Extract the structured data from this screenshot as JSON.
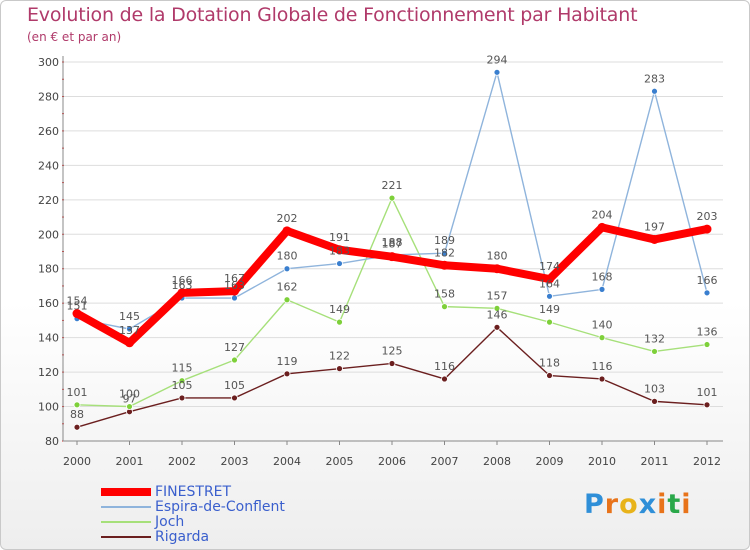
{
  "header": {
    "title": "Evolution de la Dotation Globale de Fonctionnement par Habitant",
    "subtitle": "(en € et par an)"
  },
  "logo": {
    "letters": [
      "P",
      "r",
      "o",
      "x",
      "i",
      "t",
      "i"
    ],
    "colors": [
      "#2f8fd8",
      "#e8731a",
      "#e8b31a",
      "#2f8fd8",
      "#e8731a",
      "#2aa84a",
      "#e8731a"
    ]
  },
  "chart_data": {
    "type": "line",
    "title": "Evolution de la Dotation Globale de Fonctionnement par Habitant",
    "subtitle": "(en € et par an)",
    "xlabel": "",
    "ylabel": "",
    "x": [
      "2000",
      "2001",
      "2002",
      "2003",
      "2004",
      "2005",
      "2006",
      "2007",
      "2008",
      "2009",
      "2010",
      "2011",
      "2012"
    ],
    "ylim": [
      80,
      300
    ],
    "yticks": [
      80,
      100,
      120,
      140,
      160,
      180,
      200,
      220,
      240,
      260,
      280,
      300
    ],
    "grid": "horizontal",
    "legend": "bottom-left",
    "series": [
      {
        "name": "Rigarda",
        "color": "#6b1f1f",
        "point_color": "#6b1f1f",
        "values": [
          88,
          97,
          105,
          105,
          119,
          122,
          125,
          116,
          146,
          118,
          116,
          103,
          101
        ]
      },
      {
        "name": "Joch",
        "color": "#a6e07a",
        "point_color": "#7ed03a",
        "values": [
          101,
          100,
          115,
          127,
          162,
          149,
          221,
          158,
          157,
          149,
          140,
          132,
          136
        ]
      },
      {
        "name": "Espira-de-Conflent",
        "color": "#8fb4dc",
        "point_color": "#3a7fcf",
        "values": [
          151,
          145,
          163,
          163,
          180,
          183,
          188,
          189,
          294,
          164,
          168,
          283,
          166
        ]
      },
      {
        "name": "FINESTRET",
        "color": "#ff0000",
        "point_color": "#ff0000",
        "values": [
          154,
          137,
          166,
          167,
          202,
          191,
          187,
          182,
          180,
          174,
          204,
          197,
          203
        ]
      }
    ],
    "legend_order": [
      "FINESTRET",
      "Espira-de-Conflent",
      "Joch",
      "Rigarda"
    ]
  }
}
